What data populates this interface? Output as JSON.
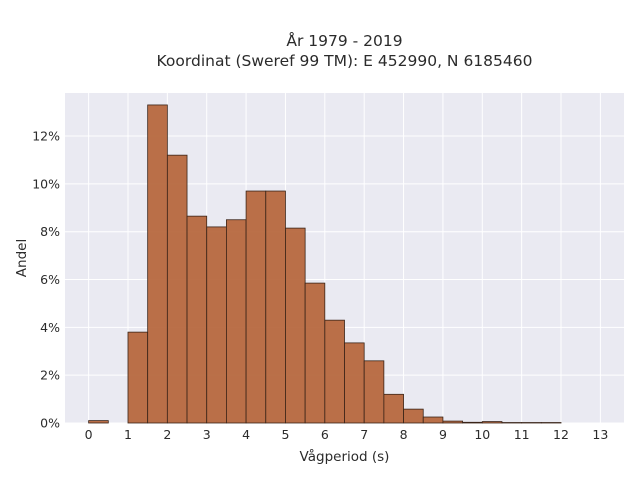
{
  "chart_data": {
    "type": "bar",
    "title_line1": "År 1979 - 2019",
    "title_line2": "Koordinat (Sweref 99 TM): E 452990, N 6185460",
    "xlabel": "Vågperiod (s)",
    "ylabel": "Andel",
    "bin_width": 0.5,
    "bin_starts": [
      0,
      1,
      1.5,
      2,
      2.5,
      3,
      3.5,
      4,
      4.5,
      5,
      5.5,
      6,
      6.5,
      7,
      7.5,
      8,
      8.5,
      9,
      9.5,
      10,
      10.5,
      11,
      11.5
    ],
    "values": [
      0.1,
      3.8,
      13.3,
      11.2,
      8.65,
      8.2,
      8.5,
      9.7,
      9.7,
      8.15,
      5.85,
      4.3,
      3.35,
      2.6,
      1.2,
      0.58,
      0.25,
      0.08,
      0.03,
      0.06,
      0.02,
      0.02,
      0.02
    ],
    "xlim": [
      -0.6,
      13.6
    ],
    "ylim": [
      0,
      13.8
    ],
    "xticks": [
      0,
      1,
      2,
      3,
      4,
      5,
      6,
      7,
      8,
      9,
      10,
      11,
      12,
      13
    ],
    "xtick_labels": [
      "0",
      "1",
      "2",
      "3",
      "4",
      "5",
      "6",
      "7",
      "8",
      "9",
      "10",
      "11",
      "12",
      "13"
    ],
    "yticks": [
      0,
      2,
      4,
      6,
      8,
      10,
      12
    ],
    "ytick_labels": [
      "0%",
      "2%",
      "4%",
      "6%",
      "8%",
      "10%",
      "12%"
    ],
    "grid": true,
    "colors": {
      "bar_fill": "#b5643a",
      "bar_edge": "#3a2418",
      "plot_background": "#eaeaf2",
      "grid": "#ffffff"
    }
  }
}
